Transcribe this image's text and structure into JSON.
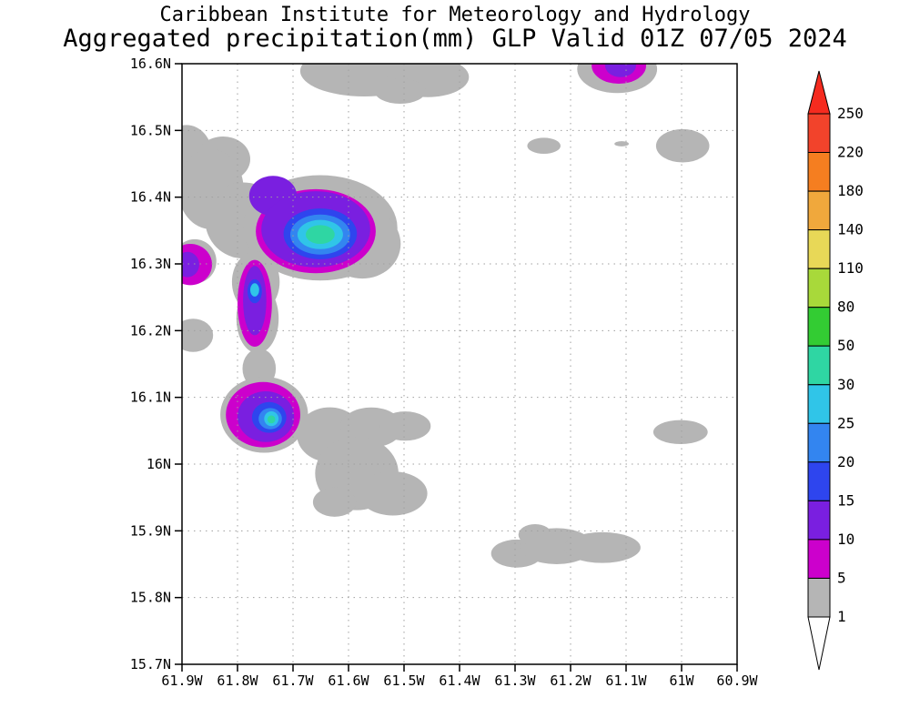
{
  "title": {
    "line1": "Caribbean Institute for Meteorology and Hydrology",
    "line2": "Aggregated precipitation(mm) GLP Valid 01Z 07/05 2024"
  },
  "chart_data": {
    "type": "heatmap",
    "subtype": "filled-contour precipitation map",
    "title": "Aggregated precipitation(mm) GLP Valid 01Z 07/05 2024",
    "institution": "Caribbean Institute for Meteorology and Hydrology",
    "region_code": "GLP",
    "valid_time": "01Z 07/05 2024",
    "units": "mm",
    "grid": true,
    "legend_position": "right",
    "projection": {
      "lon_left": 61.9,
      "lon_right": 60.9,
      "lat_top": 16.6,
      "lat_bottom": 15.7
    },
    "x_tick_values": [
      61.9,
      61.8,
      61.7,
      61.6,
      61.5,
      61.4,
      61.3,
      61.2,
      61.1,
      61.0,
      60.9
    ],
    "x_tick_labels": [
      "61.9W",
      "61.8W",
      "61.7W",
      "61.6W",
      "61.5W",
      "61.4W",
      "61.3W",
      "61.2W",
      "61.1W",
      "61W",
      "60.9W"
    ],
    "y_tick_values": [
      16.6,
      16.5,
      16.4,
      16.3,
      16.2,
      16.1,
      16.0,
      15.9,
      15.8,
      15.7
    ],
    "y_tick_labels": [
      "16.6N",
      "16.5N",
      "16.4N",
      "16.3N",
      "16.2N",
      "16.1N",
      "16N",
      "15.9N",
      "15.8N",
      "15.7N"
    ],
    "levels": [
      1,
      5,
      10,
      15,
      20,
      25,
      30,
      50,
      80,
      110,
      140,
      180,
      220,
      250
    ],
    "palette": {
      "gray": "#b5b5b5",
      "magenta": "#cc00cc",
      "violet": "#7a1fe0",
      "blue": "#2e45ee",
      "lightblue": "#3385f0",
      "cyan": "#30c5e8",
      "teal": "#2fd6a3",
      "green": "#33cc33",
      "yellowgreen": "#a8d93a",
      "yellow": "#e8d857",
      "amber": "#f0a83c",
      "orange": "#f57e20",
      "redorange": "#f2432b",
      "red": "#f52b1f"
    },
    "colorbar": {
      "boundary_labels": [
        "250",
        "220",
        "180",
        "140",
        "110",
        "80",
        "50",
        "30",
        "25",
        "20",
        "15",
        "10",
        "5",
        "1"
      ],
      "segment_colors_top_to_bottom": [
        "#f2432b",
        "#f57e20",
        "#f0a83c",
        "#e8d857",
        "#a8d93a",
        "#33cc33",
        "#2fd6a3",
        "#30c5e8",
        "#3385f0",
        "#2e45ee",
        "#7a1fe0",
        "#cc00cc",
        "#b5b5b5"
      ],
      "top_arrow_color": "#f52b1f",
      "bottom_arrow_color": "#ffffff"
    },
    "features": [
      {
        "description": "strongest cell",
        "lon_w": 61.65,
        "lat_n": 16.35,
        "peak_mm": "30-50"
      },
      {
        "description": "small cell",
        "lon_w": 61.77,
        "lat_n": 16.26,
        "peak_mm": "25-30"
      },
      {
        "description": "strong cell",
        "lon_w": 61.75,
        "lat_n": 16.07,
        "peak_mm": "30-50"
      },
      {
        "description": "cell at west edge",
        "lon_w": 61.89,
        "lat_n": 16.3,
        "peak_mm": "10-15"
      },
      {
        "description": "cell at north edge",
        "lon_w": 61.11,
        "lat_n": 16.6,
        "peak_mm": "10-15"
      },
      {
        "description": "scattered light precipitation areas",
        "peak_mm": "1-5"
      }
    ],
    "shapes": [
      [
        "gray",
        61.572,
        16.589,
        0.115,
        0.038
      ],
      [
        "gray",
        61.457,
        16.58,
        0.074,
        0.03
      ],
      [
        "gray",
        61.507,
        16.559,
        0.046,
        0.019
      ],
      [
        "gray",
        61.116,
        16.592,
        0.072,
        0.036
      ],
      [
        "gray",
        61.248,
        16.477,
        0.03,
        0.012
      ],
      [
        "gray",
        60.998,
        16.477,
        0.048,
        0.025
      ],
      [
        "gray",
        61.108,
        16.48,
        0.013,
        0.004
      ],
      [
        "gray",
        61.892,
        16.464,
        0.046,
        0.044
      ],
      [
        "gray",
        61.826,
        16.457,
        0.049,
        0.034
      ],
      [
        "gray",
        61.848,
        16.412,
        0.059,
        0.06
      ],
      [
        "gray",
        61.789,
        16.365,
        0.069,
        0.057
      ],
      [
        "gray",
        61.651,
        16.354,
        0.139,
        0.079
      ],
      [
        "gray",
        61.575,
        16.33,
        0.069,
        0.052
      ],
      [
        "gray",
        61.877,
        16.304,
        0.039,
        0.033
      ],
      [
        "gray",
        61.767,
        16.273,
        0.043,
        0.046
      ],
      [
        "gray",
        61.764,
        16.218,
        0.038,
        0.052
      ],
      [
        "gray",
        61.761,
        16.143,
        0.03,
        0.03
      ],
      [
        "gray",
        61.88,
        16.193,
        0.036,
        0.025
      ],
      [
        "gray",
        61.752,
        16.074,
        0.079,
        0.057
      ],
      [
        "gray",
        61.634,
        16.044,
        0.059,
        0.041
      ],
      [
        "gray",
        61.559,
        16.055,
        0.056,
        0.03
      ],
      [
        "gray",
        61.498,
        16.057,
        0.046,
        0.022
      ],
      [
        "gray",
        61.585,
        15.986,
        0.075,
        0.055
      ],
      [
        "gray",
        61.52,
        15.956,
        0.062,
        0.033
      ],
      [
        "gray",
        61.625,
        15.943,
        0.039,
        0.022
      ],
      [
        "gray",
        61.002,
        16.048,
        0.049,
        0.018
      ],
      [
        "gray",
        61.297,
        15.866,
        0.046,
        0.021
      ],
      [
        "gray",
        61.225,
        15.877,
        0.066,
        0.027
      ],
      [
        "gray",
        61.143,
        15.875,
        0.069,
        0.023
      ],
      [
        "gray",
        61.264,
        15.894,
        0.03,
        0.016
      ],
      [
        "magenta",
        61.113,
        16.597,
        0.049,
        0.027
      ],
      [
        "violet",
        61.11,
        16.598,
        0.028,
        0.018
      ],
      [
        "magenta",
        61.659,
        16.349,
        0.108,
        0.063
      ],
      [
        "violet",
        61.736,
        16.402,
        0.043,
        0.03
      ],
      [
        "violet",
        61.659,
        16.352,
        0.098,
        0.057
      ],
      [
        "blue",
        61.651,
        16.345,
        0.066,
        0.038
      ],
      [
        "lightblue",
        61.651,
        16.344,
        0.054,
        0.03
      ],
      [
        "cyan",
        61.651,
        16.344,
        0.041,
        0.022
      ],
      [
        "teal",
        61.651,
        16.344,
        0.026,
        0.014
      ],
      [
        "magenta",
        61.885,
        16.299,
        0.039,
        0.031
      ],
      [
        "violet",
        61.89,
        16.299,
        0.021,
        0.019
      ],
      [
        "magenta",
        61.769,
        16.241,
        0.031,
        0.065
      ],
      [
        "violet",
        61.769,
        16.245,
        0.021,
        0.052
      ],
      [
        "blue",
        61.769,
        16.259,
        0.013,
        0.018
      ],
      [
        "cyan",
        61.769,
        16.261,
        0.008,
        0.01
      ],
      [
        "magenta",
        61.754,
        16.074,
        0.067,
        0.049
      ],
      [
        "violet",
        61.749,
        16.071,
        0.051,
        0.038
      ],
      [
        "blue",
        61.743,
        16.07,
        0.031,
        0.023
      ],
      [
        "lightblue",
        61.741,
        16.068,
        0.021,
        0.016
      ],
      [
        "cyan",
        61.739,
        16.068,
        0.013,
        0.011
      ],
      [
        "teal",
        61.739,
        16.067,
        0.007,
        0.006
      ]
    ]
  }
}
